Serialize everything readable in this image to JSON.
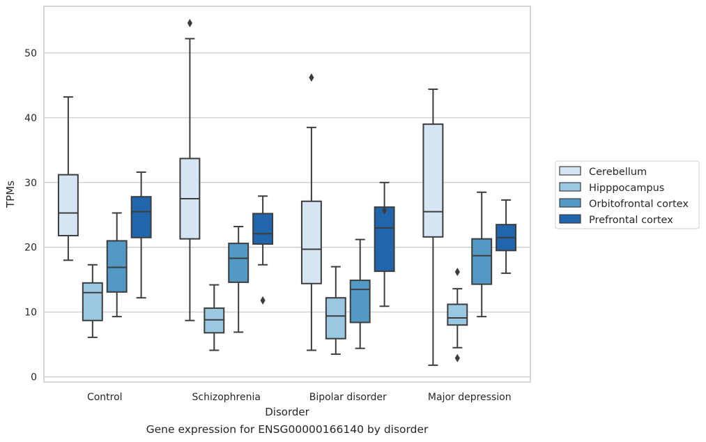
{
  "chart_data": {
    "type": "box",
    "caption": "Gene expression for ENSG00000166140 by disorder",
    "xlabel": "Disorder",
    "ylabel": "TPMs",
    "ylim": [
      -0.8,
      57.2
    ],
    "yticks": [
      0,
      10,
      20,
      30,
      40,
      50
    ],
    "grid": "horizontal",
    "legend_position": "right",
    "categories": [
      "Control",
      "Schizophrenia",
      "Bipolar disorder",
      "Major depression"
    ],
    "series": [
      {
        "name": "Cerebellum",
        "color": "#d6e5f4",
        "boxes": [
          {
            "whisker_low": 18.0,
            "q1": 21.8,
            "median": 25.3,
            "q3": 31.2,
            "whisker_high": 43.2,
            "outliers": []
          },
          {
            "whisker_low": 8.7,
            "q1": 21.3,
            "median": 27.5,
            "q3": 33.7,
            "whisker_high": 52.2,
            "outliers": [
              54.6
            ]
          },
          {
            "whisker_low": 4.1,
            "q1": 14.4,
            "median": 19.7,
            "q3": 27.1,
            "whisker_high": 38.5,
            "outliers": [
              46.2
            ]
          },
          {
            "whisker_low": 1.8,
            "q1": 21.6,
            "median": 25.5,
            "q3": 39.0,
            "whisker_high": 44.4,
            "outliers": []
          }
        ]
      },
      {
        "name": "Hipppocampus",
        "color": "#9ac8e0",
        "boxes": [
          {
            "whisker_low": 6.1,
            "q1": 8.7,
            "median": 13.0,
            "q3": 14.5,
            "whisker_high": 17.3,
            "outliers": []
          },
          {
            "whisker_low": 4.1,
            "q1": 6.8,
            "median": 8.8,
            "q3": 10.6,
            "whisker_high": 14.2,
            "outliers": []
          },
          {
            "whisker_low": 3.5,
            "q1": 5.9,
            "median": 9.4,
            "q3": 12.2,
            "whisker_high": 17.0,
            "outliers": []
          },
          {
            "whisker_low": 4.5,
            "q1": 8.0,
            "median": 9.1,
            "q3": 11.2,
            "whisker_high": 13.6,
            "outliers": [
              16.2,
              2.9
            ]
          }
        ]
      },
      {
        "name": "Orbitofrontal cortex",
        "color": "#5399c6",
        "boxes": [
          {
            "whisker_low": 9.3,
            "q1": 13.1,
            "median": 16.9,
            "q3": 21.0,
            "whisker_high": 25.3,
            "outliers": []
          },
          {
            "whisker_low": 6.9,
            "q1": 14.6,
            "median": 18.3,
            "q3": 20.6,
            "whisker_high": 23.2,
            "outliers": []
          },
          {
            "whisker_low": 4.4,
            "q1": 8.4,
            "median": 13.5,
            "q3": 14.9,
            "whisker_high": 21.2,
            "outliers": []
          },
          {
            "whisker_low": 9.3,
            "q1": 14.3,
            "median": 18.7,
            "q3": 21.3,
            "whisker_high": 28.5,
            "outliers": []
          }
        ]
      },
      {
        "name": "Prefrontal cortex",
        "color": "#2166ac",
        "boxes": [
          {
            "whisker_low": 12.2,
            "q1": 21.5,
            "median": 25.5,
            "q3": 27.8,
            "whisker_high": 31.6,
            "outliers": []
          },
          {
            "whisker_low": 17.3,
            "q1": 20.5,
            "median": 22.1,
            "q3": 25.2,
            "whisker_high": 27.9,
            "outliers": [
              11.8
            ]
          },
          {
            "whisker_low": 10.9,
            "q1": 16.3,
            "median": 23.0,
            "q3": 26.2,
            "whisker_high": 30.0,
            "outliers": [
              25.7
            ]
          },
          {
            "whisker_low": 16.0,
            "q1": 19.5,
            "median": 21.5,
            "q3": 23.5,
            "whisker_high": 27.3,
            "outliers": []
          }
        ]
      }
    ]
  }
}
